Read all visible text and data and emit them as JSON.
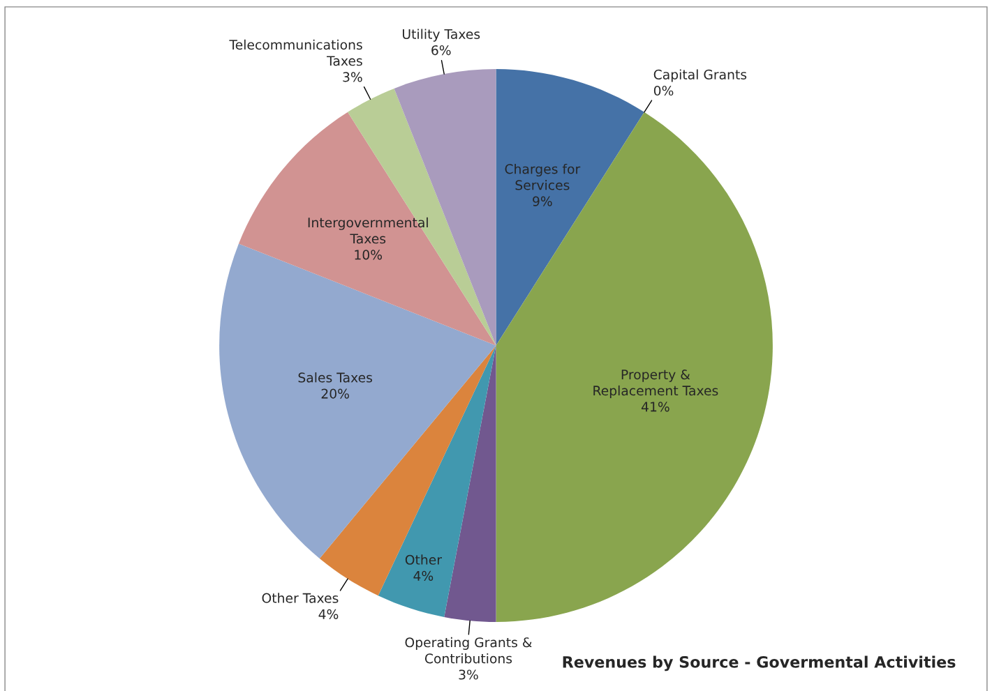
{
  "chart_data": {
    "type": "pie",
    "title": "Revenues by Source - Govermental Activities",
    "categories": [
      "Charges for\nServices",
      "Capital Grants",
      "Property &\nReplacement Taxes",
      "Operating Grants &\nContributions",
      "Other",
      "Other Taxes",
      "Sales Taxes",
      "Intergovernmental\nTaxes",
      "Telecommunications\nTaxes",
      "Utility Taxes"
    ],
    "values": [
      9,
      0,
      41,
      3,
      4,
      4,
      20,
      10,
      3,
      6
    ],
    "value_labels": [
      "9%",
      "0%",
      "41%",
      "3%",
      "4%",
      "4%",
      "20%",
      "10%",
      "3%",
      "6%"
    ],
    "colors": [
      "#4572a7",
      "#c0504d",
      "#89a54e",
      "#71588f",
      "#4198af",
      "#db843d",
      "#93a9cf",
      "#d19392",
      "#b9cd96",
      "#a99bbd"
    ],
    "legend": false
  }
}
